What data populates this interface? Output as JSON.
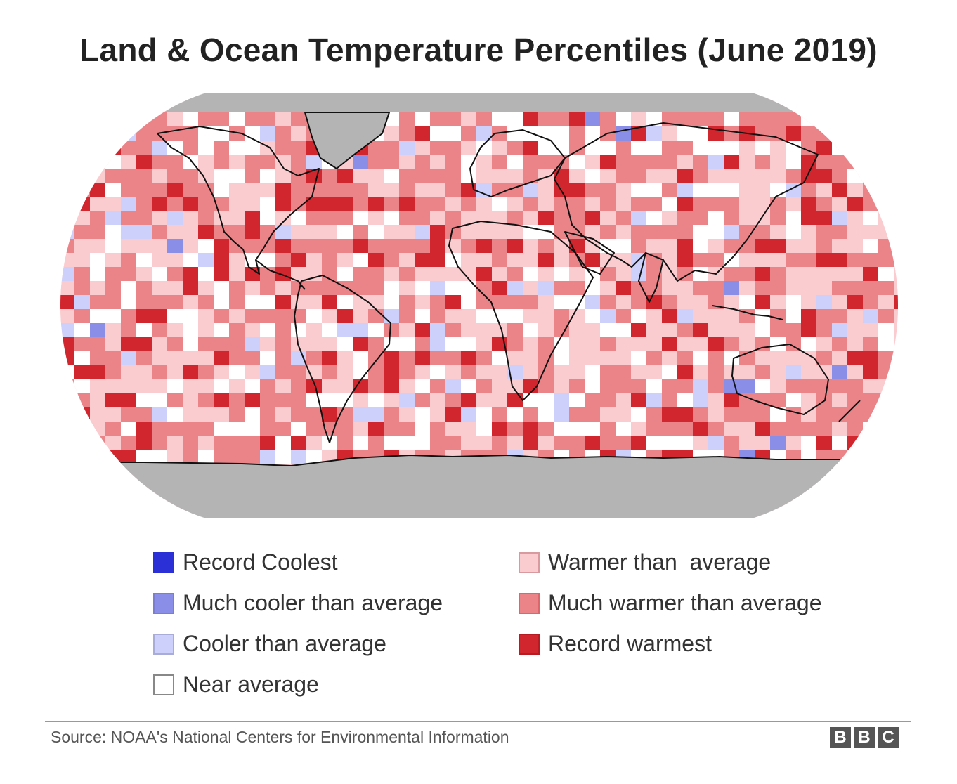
{
  "title": "Land & Ocean Temperature Percentiles (June 2019)",
  "legend": [
    {
      "label": "Record Coolest",
      "color": "#2b2fd6",
      "border": "#2b2fd6"
    },
    {
      "label": "Much cooler than average",
      "color": "#8b8ee6",
      "border": "#7a7dd0"
    },
    {
      "label": "Cooler than average",
      "color": "#cdd0fa",
      "border": "#a9acd8"
    },
    {
      "label": "Near average",
      "color": "#ffffff",
      "border": "#888888"
    },
    {
      "label": "Warmer than  average",
      "color": "#fbcccf",
      "border": "#d99a9f"
    },
    {
      "label": "Much warmer than average",
      "color": "#eb8489",
      "border": "#d9676c"
    },
    {
      "label": "Record warmest",
      "color": "#d2262e",
      "border": "#b81c23"
    }
  ],
  "map_colors": {
    "no_data": "#b4b4b4",
    "record_coolest": "#2b2fd6",
    "much_cooler": "#8b8ee6",
    "cooler": "#cdd0fa",
    "near": "#ffffff",
    "warmer": "#fbcccf",
    "much_warmer": "#eb8489",
    "record_warmest": "#d2262e",
    "coastline": "#111111"
  },
  "source": "Source: NOAA's National Centers for Environmental Information",
  "logo": {
    "letters": [
      "B",
      "B",
      "C"
    ]
  }
}
